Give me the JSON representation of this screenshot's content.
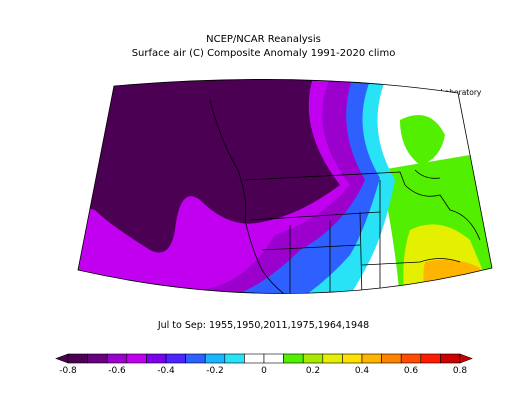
{
  "header": {
    "title": "NCEP/NCAR Reanalysis",
    "subtitle": "Surface air (C) Composite Anomaly 1991-2020 climo",
    "credit": "NOAA Physical Sciences Laboratory"
  },
  "footer": {
    "period": "Jul to Sep: 1955,1950,2011,1975,1964,1948"
  },
  "colorbar": {
    "ticks": [
      "-0.8",
      "-0.6",
      "-0.4",
      "-0.2",
      "0",
      "0.2",
      "0.4",
      "0.6",
      "0.8"
    ],
    "colors": [
      "#4b0054",
      "#6a0080",
      "#9c00cc",
      "#c100f0",
      "#7a00f0",
      "#4c24ff",
      "#2d60ff",
      "#1ab4ff",
      "#27e3f5",
      "#ffffff",
      "#ffffff",
      "#52f000",
      "#a9e800",
      "#e5f000",
      "#ffe000",
      "#ffb400",
      "#ff8200",
      "#ff4c00",
      "#ff1a00",
      "#cc0000"
    ]
  },
  "map": {
    "region": "Western North America",
    "anomaly_colors": {
      "strong_negative": "#4b0054",
      "negative": "#9c00cc",
      "weak_negative": "#2d60ff",
      "near_zero_cool": "#27e3f5",
      "neutral": "#ffffff",
      "weak_positive": "#52f000",
      "positive": "#e5f000",
      "warm": "#ffb400"
    }
  }
}
